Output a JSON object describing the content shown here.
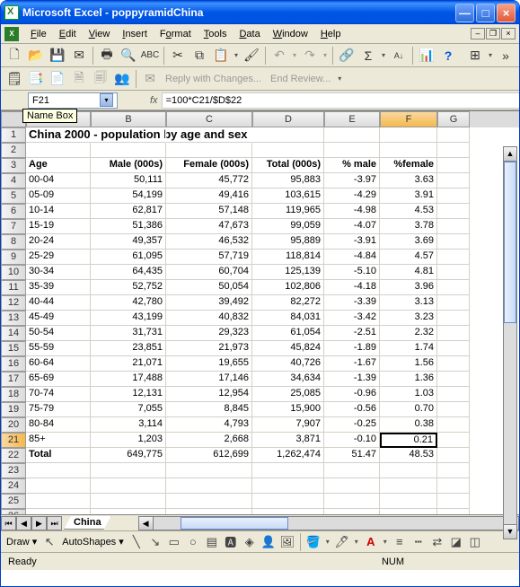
{
  "window": {
    "title": "Microsoft Excel - poppyramidChina",
    "min": "_",
    "max": "□",
    "close": "×"
  },
  "menus": {
    "file": "File",
    "edit": "Edit",
    "view": "View",
    "insert": "Insert",
    "format": "Format",
    "tools": "Tools",
    "data": "Data",
    "window": "Window",
    "help": "Help"
  },
  "toolbar2_text": {
    "reply": "Reply with Changes...",
    "end": "End Review..."
  },
  "namebox": {
    "value": "F21",
    "tooltip": "Name Box"
  },
  "formula": {
    "fx": "fx",
    "value": "=100*C21/$D$22"
  },
  "columns": [
    "A",
    "B",
    "C",
    "D",
    "E",
    "F",
    "G"
  ],
  "title_row": "China 2000 - population by age and sex",
  "headers": {
    "age": "Age",
    "male": "Male (000s)",
    "female": "Female (000s)",
    "total": "Total (000s)",
    "pmale": "% male",
    "pfemale": "%female"
  },
  "rows": [
    {
      "n": "4",
      "age": "00-04",
      "male": "50,111",
      "female": "45,772",
      "total": "95,883",
      "pmale": "-3.97",
      "pfemale": "3.63"
    },
    {
      "n": "5",
      "age": "05-09",
      "male": "54,199",
      "female": "49,416",
      "total": "103,615",
      "pmale": "-4.29",
      "pfemale": "3.91"
    },
    {
      "n": "6",
      "age": "10-14",
      "male": "62,817",
      "female": "57,148",
      "total": "119,965",
      "pmale": "-4.98",
      "pfemale": "4.53"
    },
    {
      "n": "7",
      "age": "15-19",
      "male": "51,386",
      "female": "47,673",
      "total": "99,059",
      "pmale": "-4.07",
      "pfemale": "3.78"
    },
    {
      "n": "8",
      "age": "20-24",
      "male": "49,357",
      "female": "46,532",
      "total": "95,889",
      "pmale": "-3.91",
      "pfemale": "3.69"
    },
    {
      "n": "9",
      "age": "25-29",
      "male": "61,095",
      "female": "57,719",
      "total": "118,814",
      "pmale": "-4.84",
      "pfemale": "4.57"
    },
    {
      "n": "10",
      "age": "30-34",
      "male": "64,435",
      "female": "60,704",
      "total": "125,139",
      "pmale": "-5.10",
      "pfemale": "4.81"
    },
    {
      "n": "11",
      "age": "35-39",
      "male": "52,752",
      "female": "50,054",
      "total": "102,806",
      "pmale": "-4.18",
      "pfemale": "3.96"
    },
    {
      "n": "12",
      "age": "40-44",
      "male": "42,780",
      "female": "39,492",
      "total": "82,272",
      "pmale": "-3.39",
      "pfemale": "3.13"
    },
    {
      "n": "13",
      "age": "45-49",
      "male": "43,199",
      "female": "40,832",
      "total": "84,031",
      "pmale": "-3.42",
      "pfemale": "3.23"
    },
    {
      "n": "14",
      "age": "50-54",
      "male": "31,731",
      "female": "29,323",
      "total": "61,054",
      "pmale": "-2.51",
      "pfemale": "2.32"
    },
    {
      "n": "15",
      "age": "55-59",
      "male": "23,851",
      "female": "21,973",
      "total": "45,824",
      "pmale": "-1.89",
      "pfemale": "1.74"
    },
    {
      "n": "16",
      "age": "60-64",
      "male": "21,071",
      "female": "19,655",
      "total": "40,726",
      "pmale": "-1.67",
      "pfemale": "1.56"
    },
    {
      "n": "17",
      "age": "65-69",
      "male": "17,488",
      "female": "17,146",
      "total": "34,634",
      "pmale": "-1.39",
      "pfemale": "1.36"
    },
    {
      "n": "18",
      "age": "70-74",
      "male": "12,131",
      "female": "12,954",
      "total": "25,085",
      "pmale": "-0.96",
      "pfemale": "1.03"
    },
    {
      "n": "19",
      "age": "75-79",
      "male": "7,055",
      "female": "8,845",
      "total": "15,900",
      "pmale": "-0.56",
      "pfemale": "0.70"
    },
    {
      "n": "20",
      "age": "80-84",
      "male": "3,114",
      "female": "4,793",
      "total": "7,907",
      "pmale": "-0.25",
      "pfemale": "0.38"
    },
    {
      "n": "21",
      "age": "85+",
      "male": "1,203",
      "female": "2,668",
      "total": "3,871",
      "pmale": "-0.10",
      "pfemale": "0.21"
    }
  ],
  "total_row": {
    "n": "22",
    "age": "Total",
    "male": "649,775",
    "female": "612,699",
    "total": "1,262,474",
    "pmale": "51.47",
    "pfemale": "48.53"
  },
  "sheet_tab": "China",
  "draw": {
    "label": "Draw",
    "autoshapes": "AutoShapes"
  },
  "status": {
    "ready": "Ready",
    "num": "NUM"
  }
}
